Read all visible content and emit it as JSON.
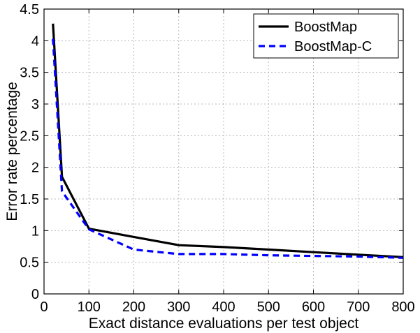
{
  "chart_data": {
    "type": "line",
    "xlabel": "Exact distance evaluations per test object",
    "ylabel": "Error rate percentage",
    "xlim": [
      0,
      800
    ],
    "ylim": [
      0,
      4.5
    ],
    "xticks": [
      0,
      100,
      200,
      300,
      400,
      500,
      600,
      700,
      800
    ],
    "yticks": [
      0,
      0.5,
      1,
      1.5,
      2,
      2.5,
      3,
      3.5,
      4,
      4.5
    ],
    "xtick_labels": [
      "0",
      "100",
      "200",
      "300",
      "400",
      "500",
      "600",
      "700",
      "800"
    ],
    "ytick_labels": [
      "0",
      "0.5",
      "1",
      "1.5",
      "2",
      "2.5",
      "3",
      "3.5",
      "4",
      "4.5"
    ],
    "grid": true,
    "legend_position": "top-right",
    "series": [
      {
        "name": "BoostMap",
        "color": "#000000",
        "style": "solid",
        "x": [
          20,
          40,
          100,
          200,
          300,
          400,
          500,
          600,
          700,
          800
        ],
        "y": [
          4.27,
          1.85,
          1.03,
          0.9,
          0.77,
          0.74,
          0.7,
          0.66,
          0.62,
          0.58
        ]
      },
      {
        "name": "BoostMap-C",
        "color": "#0000ff",
        "style": "dashed",
        "x": [
          20,
          40,
          100,
          200,
          300,
          400,
          500,
          600,
          700,
          800
        ],
        "y": [
          4.03,
          1.62,
          1.02,
          0.7,
          0.63,
          0.63,
          0.61,
          0.6,
          0.59,
          0.57
        ]
      }
    ]
  }
}
